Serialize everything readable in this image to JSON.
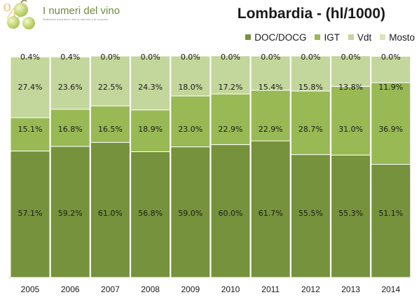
{
  "header": {
    "logo_title": "I numeri del vino",
    "logo_subtitle": "Statistiche produttive, dati di mercato e di consumo"
  },
  "colors": {
    "doc_docg": "#76923c",
    "igt": "#98b954",
    "vdt": "#c3d69b",
    "mosto": "#d8e4bc"
  },
  "chart_data": {
    "type": "bar",
    "stacked": true,
    "percent": true,
    "title": "Lombardia - (hl/1000)",
    "xlabel": "",
    "ylabel": "",
    "ylim": [
      0,
      100
    ],
    "grid": false,
    "legend_position": "top-right",
    "categories": [
      "2005",
      "2006",
      "2007",
      "2008",
      "2009",
      "2010",
      "2011",
      "2012",
      "2013",
      "2014"
    ],
    "series": [
      {
        "name": "DOC/DOCG",
        "color": "#76923c",
        "values": [
          57.1,
          59.2,
          61.0,
          56.8,
          59.0,
          60.0,
          61.7,
          55.5,
          55.3,
          51.1
        ],
        "labels": [
          "57.1%",
          "59.2%",
          "61.0%",
          "56.8%",
          "59.0%",
          "60.0%",
          "61.7%",
          "55.5%",
          "55.3%",
          "51.1%"
        ]
      },
      {
        "name": "IGT",
        "color": "#98b954",
        "values": [
          15.1,
          16.8,
          16.5,
          18.9,
          23.0,
          22.9,
          22.9,
          28.7,
          31.0,
          36.9
        ],
        "labels": [
          "15.1%",
          "16.8%",
          "16.5%",
          "18.9%",
          "23.0%",
          "22.9%",
          "22.9%",
          "28.7%",
          "31.0%",
          "36.9%"
        ]
      },
      {
        "name": "Vdt",
        "color": "#c3d69b",
        "values": [
          27.4,
          23.6,
          22.5,
          24.3,
          18.0,
          17.2,
          15.4,
          15.8,
          13.8,
          11.9
        ],
        "labels": [
          "27.4%",
          "23.6%",
          "22.5%",
          "24.3%",
          "18.0%",
          "17.2%",
          "15.4%",
          "15.8%",
          "13.8%",
          "11.9%"
        ]
      },
      {
        "name": "Mosto",
        "color": "#d8e4bc",
        "values": [
          0.4,
          0.4,
          0.0,
          0.0,
          0.0,
          0.0,
          0.0,
          0.0,
          0.0,
          0.0
        ],
        "labels": [
          "0.4%",
          "0.4%",
          "0.0%",
          "0.0%",
          "0.0%",
          "0.0%",
          "0.0%",
          "0.0%",
          "0.0%",
          "0.0%"
        ]
      }
    ]
  }
}
